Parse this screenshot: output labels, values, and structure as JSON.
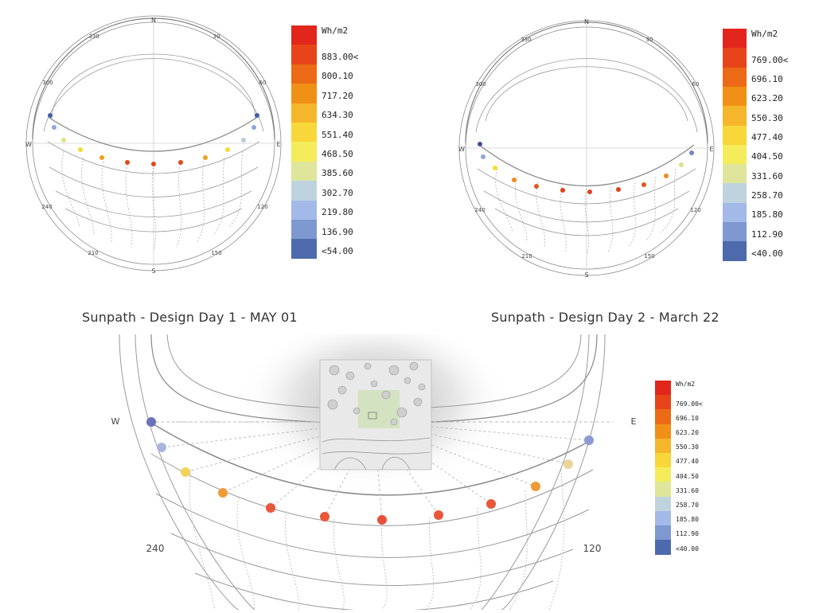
{
  "diagrams": [
    {
      "caption": "Sunpath - Design Day 1 - MAY 01",
      "compass": {
        "north": "N",
        "south": "S",
        "east": "E",
        "west": "W"
      },
      "azimuth_labels": [
        "330",
        "30",
        "300",
        "60",
        "240",
        "120",
        "210",
        "150"
      ],
      "legend": {
        "title": "Wh/m2",
        "labels": [
          "883.00<",
          "800.10",
          "717.20",
          "634.30",
          "551.40",
          "468.50",
          "385.60",
          "302.70",
          "219.80",
          "136.90",
          "<54.00"
        ]
      },
      "sun_positions": [
        "#3f5fa8",
        "#8ea7dd",
        "#e0e28a",
        "#f5dd2e",
        "#f0a020",
        "#e0481c",
        "#e0481c",
        "#e0481c",
        "#f0a020",
        "#f5dd2e",
        "#b7cbd9",
        "#8ea7dd",
        "#3f5fa8"
      ]
    },
    {
      "caption": "Sunpath - Design Day 2 - March 22",
      "compass": {
        "north": "N",
        "south": "S",
        "east": "E",
        "west": "W"
      },
      "azimuth_labels": [
        "330",
        "30",
        "300",
        "60",
        "240",
        "120",
        "210",
        "150"
      ],
      "legend": {
        "title": "Wh/m2",
        "labels": [
          "769.00<",
          "696.10",
          "623.20",
          "550.30",
          "477.40",
          "404.50",
          "331.60",
          "258.70",
          "185.80",
          "112.90",
          "<40.00"
        ]
      },
      "sun_positions": [
        "#3a509c",
        "#8ea7dd",
        "#f5dd2e",
        "#ef8c1c",
        "#e7541c",
        "#e0421c",
        "#e0421c",
        "#e0421c",
        "#e7541c",
        "#ef8c1c",
        "#e0e28a",
        "#6f88c4"
      ]
    },
    {
      "caption": "",
      "compass": {
        "east": "E",
        "west": "W"
      },
      "azimuth_labels": [
        "240",
        "120"
      ],
      "legend": {
        "title": "Wh/m2",
        "labels": [
          "769.00<",
          "696.10",
          "623.20",
          "550.30",
          "477.40",
          "404.50",
          "331.60",
          "258.70",
          "185.80",
          "112.90",
          "<40.00"
        ]
      },
      "sun_positions": [
        "#6b73b8",
        "#a9b6df",
        "#f2d35a",
        "#ef9a36",
        "#e9573a",
        "#e9573a",
        "#e9503a",
        "#e9573a",
        "#e9573a",
        "#ef9a36",
        "#ecd49a",
        "#8e9ad4"
      ]
    }
  ],
  "colors": {
    "scale": [
      "#e2261c",
      "#e8441a",
      "#ec6a16",
      "#f09016",
      "#f5b62c",
      "#f7d73a",
      "#f5ec5c",
      "#dfe59a",
      "#bfd3df",
      "#a3b9e8",
      "#7e98d0",
      "#4d6aac"
    ],
    "line": "#7a7a7a"
  }
}
